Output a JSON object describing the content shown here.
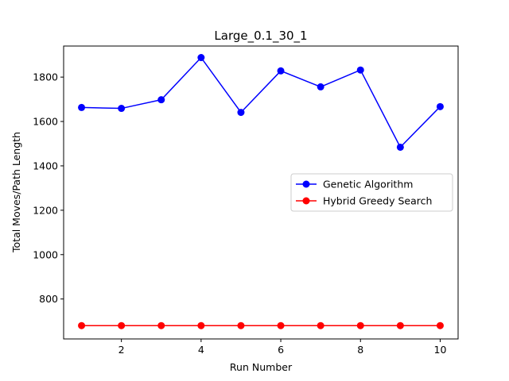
{
  "chart_data": {
    "type": "line",
    "title": "Large_0.1_30_1",
    "xlabel": "Run Number",
    "ylabel": "Total Moves/Path Length",
    "x": [
      1,
      2,
      3,
      4,
      5,
      6,
      7,
      8,
      9,
      10
    ],
    "xlim": [
      0.55,
      10.45
    ],
    "ylim": [
      620,
      1940
    ],
    "xticks": [
      2,
      4,
      6,
      8,
      10
    ],
    "yticks": [
      800,
      1000,
      1200,
      1400,
      1600,
      1800
    ],
    "grid": false,
    "legend_position": "center-right",
    "series": [
      {
        "name": "Genetic Algorithm",
        "color": "#0000ff",
        "marker": "circle",
        "values": [
          1663,
          1659,
          1698,
          1888,
          1641,
          1828,
          1756,
          1832,
          1484,
          1667
        ]
      },
      {
        "name": "Hybrid Greedy Search",
        "color": "#ff0000",
        "marker": "circle",
        "values": [
          680,
          680,
          680,
          680,
          680,
          680,
          680,
          680,
          680,
          680
        ]
      }
    ]
  }
}
